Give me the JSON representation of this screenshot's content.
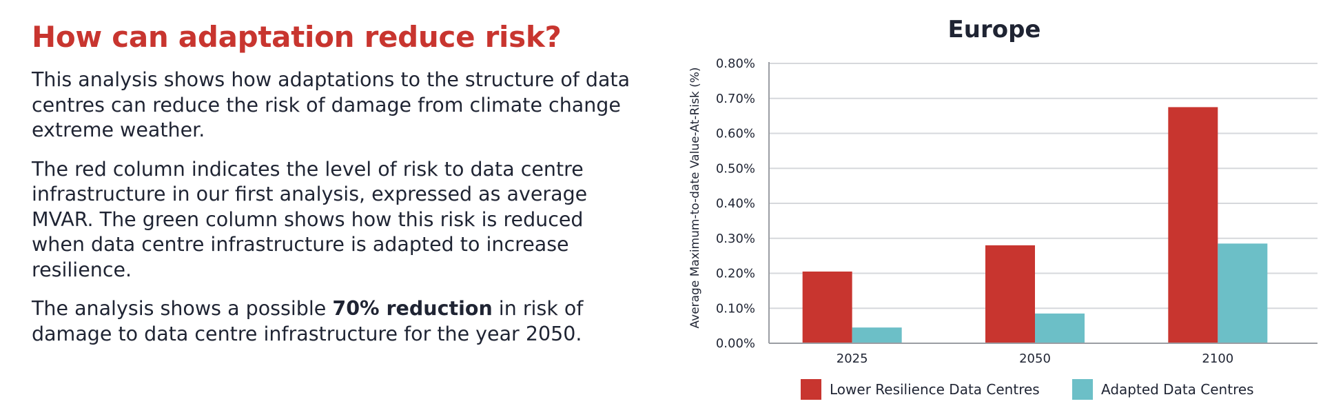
{
  "left_panel": {
    "heading": "How can adaptation reduce risk?",
    "para1": "This analysis shows how adaptations to the structure of data centres can reduce the risk of damage from climate change extreme weather.",
    "para2": "The red column indicates the level of risk to data centre infrastructure in our first analysis, expressed as average MVAR. The green column shows how this risk is reduced when data centre infrastructure is adapted to increase resilience.",
    "para3_before": "The analysis shows a possible ",
    "para3_bold": "70% reduction",
    "para3_after": " in risk of damage to data centre infrastructure for the year 2050."
  },
  "colors": {
    "heading": "#c8352f",
    "series_lower": "#c8352f",
    "series_adapted": "#6cbfc7",
    "grid": "#d6d8dc",
    "axis": "#9a9da3"
  },
  "chart_data": {
    "type": "bar",
    "title": "Europe",
    "xlabel": "",
    "ylabel": "Average Maximum-to-date Value-At-Risk (%)",
    "categories": [
      "2025",
      "2050",
      "2100"
    ],
    "series": [
      {
        "name": "Lower Resilience Data Centres",
        "values": [
          0.205,
          0.28,
          0.675
        ]
      },
      {
        "name": "Adapted Data Centres",
        "values": [
          0.045,
          0.085,
          0.285
        ]
      }
    ],
    "ylim": [
      0,
      0.8
    ],
    "yticks": [
      0.0,
      0.1,
      0.2,
      0.3,
      0.4,
      0.5,
      0.6,
      0.7,
      0.8
    ],
    "ytick_labels": [
      "0.00%",
      "0.10%",
      "0.20%",
      "0.30%",
      "0.40%",
      "0.50%",
      "0.60%",
      "0.70%",
      "0.80%"
    ],
    "grid": true,
    "legend_position": "bottom"
  }
}
